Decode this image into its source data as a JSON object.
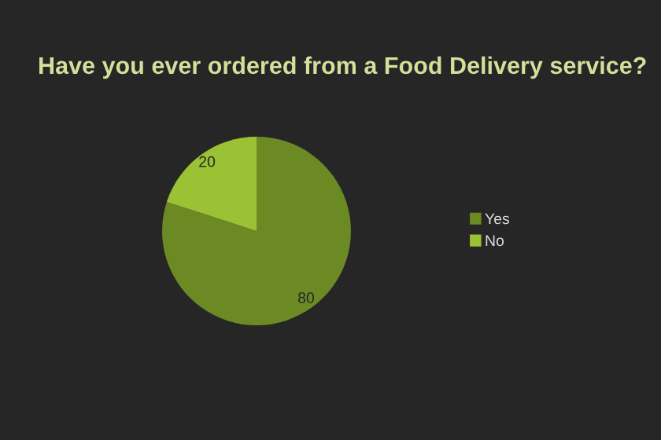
{
  "chart_data": {
    "type": "pie",
    "title": "Have you ever ordered from a Food Delivery service?",
    "categories": [
      "Yes",
      "No"
    ],
    "values": [
      80,
      20
    ],
    "colors": [
      "#6b8a23",
      "#9bc234"
    ],
    "data_labels": true,
    "legend": "right"
  }
}
